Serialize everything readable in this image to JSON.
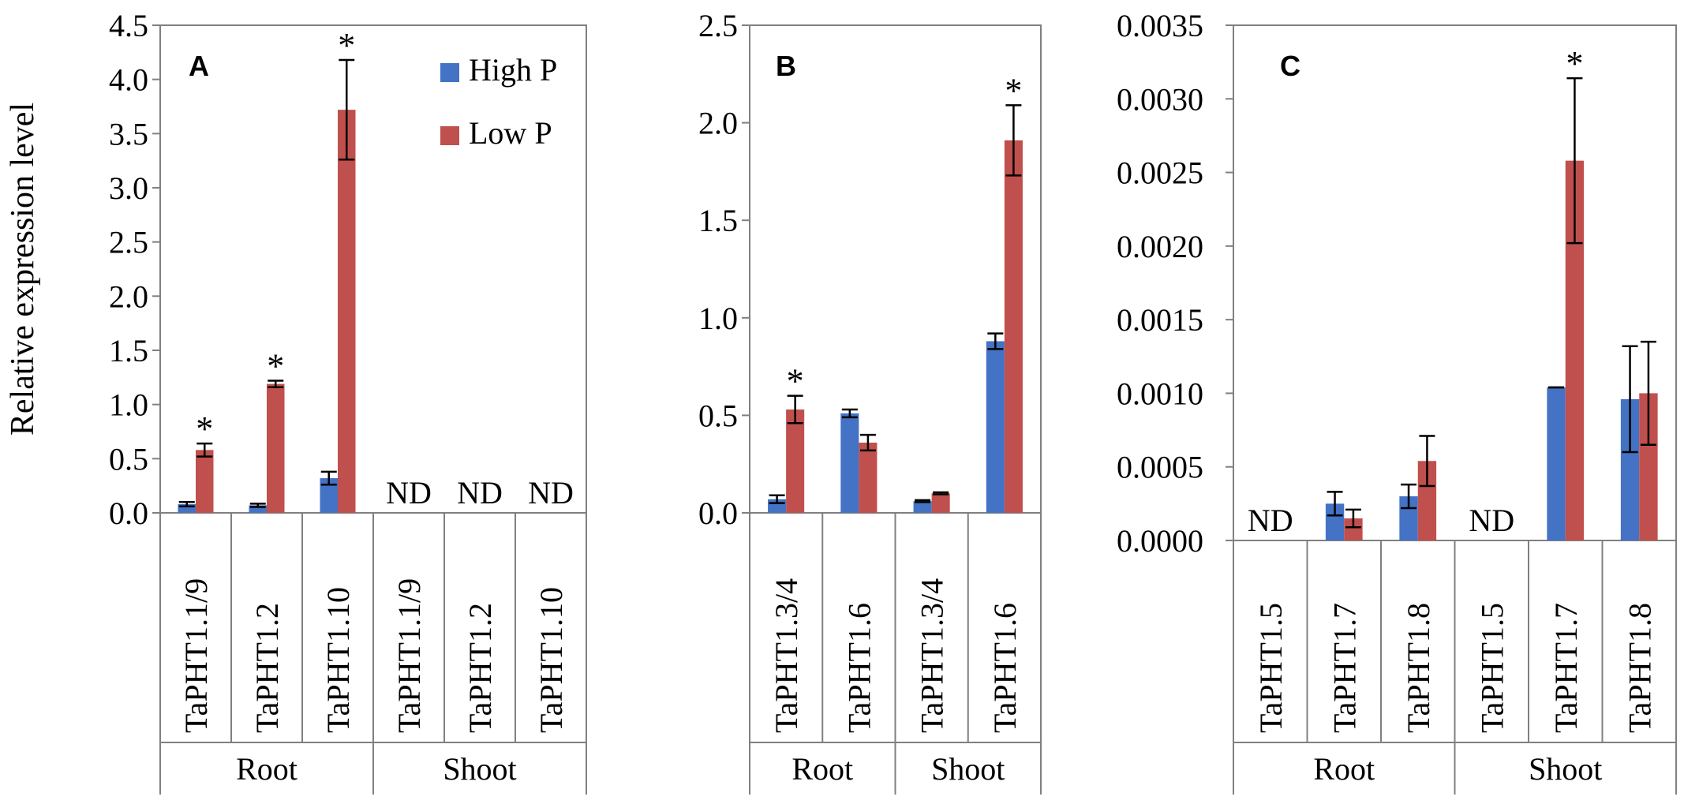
{
  "chart_data": [
    {
      "type": "bar",
      "panel": "A",
      "ylabel": "Relative expression level",
      "ylim": [
        0,
        4.5
      ],
      "yticks": [
        "0.0",
        "0.5",
        "1.0",
        "1.5",
        "2.0",
        "2.5",
        "3.0",
        "3.5",
        "4.0",
        "4.5"
      ],
      "categories": [
        "TaPHT1.1/9",
        "TaPHT1.2",
        "TaPHT1.10",
        "TaPHT1.1/9",
        "TaPHT1.2",
        "TaPHT1.10"
      ],
      "groups": [
        {
          "label": "Root",
          "count": 3
        },
        {
          "label": "Shoot",
          "count": 3
        }
      ],
      "series": [
        {
          "name": "High P",
          "color": "#4472C4",
          "values": [
            0.08,
            0.07,
            0.32,
            null,
            null,
            null
          ],
          "errors": [
            0.02,
            0.015,
            0.06,
            null,
            null,
            null
          ]
        },
        {
          "name": "Low P",
          "color": "#C0504D",
          "values": [
            0.58,
            1.19,
            3.72,
            null,
            null,
            null
          ],
          "errors": [
            0.06,
            0.03,
            0.46,
            null,
            null,
            null
          ]
        }
      ],
      "significance": [
        "*",
        "*",
        "*",
        "",
        "",
        ""
      ],
      "not_detected": [
        "",
        "",
        "",
        "ND",
        "ND",
        "ND"
      ],
      "legend": [
        "High P",
        "Low P"
      ]
    },
    {
      "type": "bar",
      "panel": "B",
      "ylim": [
        0,
        2.5
      ],
      "yticks": [
        "0.0",
        "0.5",
        "1.0",
        "1.5",
        "2.0",
        "2.5"
      ],
      "categories": [
        "TaPHT1.3/4",
        "TaPHT1.6",
        "TaPHT1.3/4",
        "TaPHT1.6"
      ],
      "groups": [
        {
          "label": "Root",
          "count": 2
        },
        {
          "label": "Shoot",
          "count": 2
        }
      ],
      "series": [
        {
          "name": "High P",
          "color": "#4472C4",
          "values": [
            0.07,
            0.51,
            0.06,
            0.88
          ],
          "errors": [
            0.02,
            0.02,
            0.005,
            0.04
          ]
        },
        {
          "name": "Low P",
          "color": "#C0504D",
          "values": [
            0.53,
            0.36,
            0.1,
            1.91
          ],
          "errors": [
            0.07,
            0.04,
            0.005,
            0.18
          ]
        }
      ],
      "significance": [
        "*",
        "",
        "",
        "*"
      ],
      "not_detected": [
        "",
        "",
        "",
        ""
      ]
    },
    {
      "type": "bar",
      "panel": "C",
      "ylim": [
        0,
        0.0035
      ],
      "yticks": [
        "0.0000",
        "0.0005",
        "0.0010",
        "0.0015",
        "0.0020",
        "0.0025",
        "0.0030",
        "0.0035"
      ],
      "categories": [
        "TaPHT1.5",
        "TaPHT1.7",
        "TaPHT1.8",
        "TaPHT1.5",
        "TaPHT1.7",
        "TaPHT1.8"
      ],
      "groups": [
        {
          "label": "Root",
          "count": 3
        },
        {
          "label": "Shoot",
          "count": 3
        }
      ],
      "series": [
        {
          "name": "High P",
          "color": "#4472C4",
          "values": [
            null,
            0.00025,
            0.0003,
            null,
            0.00104,
            0.00096
          ],
          "errors": [
            null,
            8e-05,
            8e-05,
            null,
            0.0,
            0.00036
          ]
        },
        {
          "name": "Low P",
          "color": "#C0504D",
          "values": [
            null,
            0.00015,
            0.00054,
            null,
            0.00258,
            0.001
          ],
          "errors": [
            null,
            6e-05,
            0.00017,
            null,
            0.00056,
            0.00035
          ]
        }
      ],
      "significance": [
        "",
        "",
        "",
        "",
        "*",
        ""
      ],
      "not_detected": [
        "ND",
        "",
        "",
        "ND",
        "",
        ""
      ]
    }
  ]
}
